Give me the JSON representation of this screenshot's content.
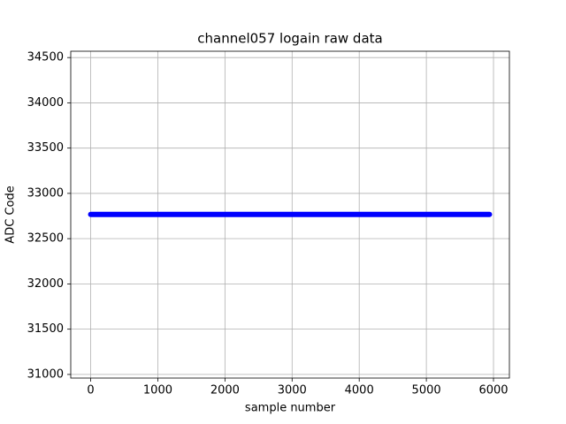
{
  "chart_data": {
    "type": "line",
    "title": "channel057 logain raw data",
    "x_label": "sample number",
    "y_label": "ADC Code",
    "series": [
      {
        "name": "channel057",
        "color": "#0000ff",
        "x": [
          0,
          5940
        ],
        "values": [
          32768,
          32768
        ]
      }
    ],
    "xlim": [
      -297,
      6237
    ],
    "xticks": [
      0,
      1000,
      2000,
      3000,
      4000,
      5000,
      6000
    ],
    "ylim": [
      30960,
      34570
    ],
    "yticks": [
      31000,
      31500,
      32000,
      32500,
      33000,
      33500,
      34000,
      34500
    ],
    "grid": true
  }
}
